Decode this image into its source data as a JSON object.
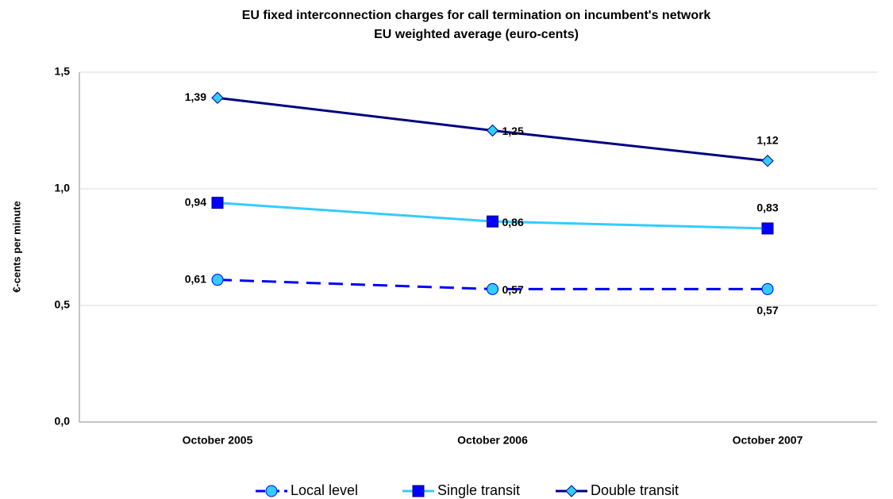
{
  "chart_data": {
    "type": "line",
    "title": "EU fixed interconnection charges for call termination on incumbent's network",
    "subtitle": "EU weighted average (euro-cents)",
    "y_label": "€-cents per minute",
    "categories": [
      "October 2005",
      "October 2006",
      "October 2007"
    ],
    "series": [
      {
        "name": "Local level",
        "color": "#0000ff",
        "marker": "circle",
        "marker_fill": "#33ccff",
        "line_style": "dashed",
        "values": [
          0.61,
          0.57,
          0.57
        ],
        "value_labels": [
          "0,61",
          "0,57",
          "0,57"
        ]
      },
      {
        "name": "Single transit",
        "color": "#33ccff",
        "marker": "square",
        "marker_fill": "#0000ff",
        "line_style": "solid",
        "values": [
          0.94,
          0.86,
          0.83
        ],
        "value_labels": [
          "0,94",
          "0,86",
          "0,83"
        ]
      },
      {
        "name": "Double transit",
        "color": "#000080",
        "marker": "diamond",
        "marker_fill": "#33ccff",
        "line_style": "solid",
        "values": [
          1.39,
          1.25,
          1.12
        ],
        "value_labels": [
          "1,39",
          "1,25",
          "1,12"
        ]
      }
    ],
    "ylim": [
      0,
      1.5
    ],
    "yticks": [
      {
        "value": 0,
        "label": "0,0"
      },
      {
        "value": 0.5,
        "label": "0,5"
      },
      {
        "value": 1,
        "label": "1,0"
      },
      {
        "value": 1.5,
        "label": "1,5"
      }
    ],
    "grid": true,
    "legend": "bottom"
  }
}
